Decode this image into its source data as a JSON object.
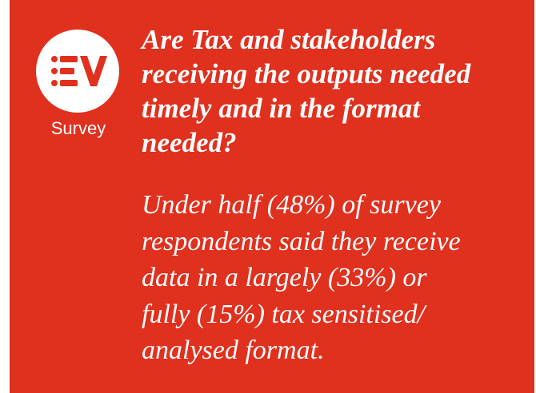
{
  "card": {
    "label": "Survey",
    "question_lines": [
      "Are Tax and stakeholders",
      "receiving the outputs needed",
      "timely and in the format",
      "needed?"
    ],
    "answer_lines": [
      "Under half (48%) of survey",
      "respondents said they receive",
      "data in a largely (33%) or",
      "fully (15%) tax sensitised/",
      "analysed format."
    ]
  }
}
